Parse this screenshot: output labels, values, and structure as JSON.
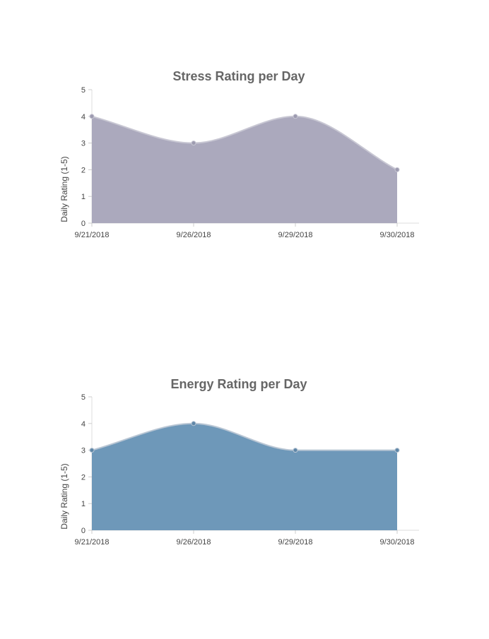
{
  "chart_data": [
    {
      "type": "area",
      "title": "Stress Rating per Day",
      "xlabel": "",
      "ylabel": "Daily Rating (1-5)",
      "categories": [
        "9/21/2018",
        "9/26/2018",
        "9/29/2018",
        "9/30/2018"
      ],
      "values": [
        4,
        3,
        4,
        2
      ],
      "ylim": [
        0,
        5
      ],
      "yticks": [
        "0",
        "1",
        "2",
        "3",
        "4",
        "5"
      ],
      "grid": false,
      "fill_color": "#aba9bd",
      "line_color": "#c8c7d3",
      "point_color": "#9d9bb0"
    },
    {
      "type": "area",
      "title": "Energy Rating per Day",
      "xlabel": "",
      "ylabel": "Daily Rating (1-5)",
      "categories": [
        "9/21/2018",
        "9/26/2018",
        "9/29/2018",
        "9/30/2018"
      ],
      "values": [
        3,
        4,
        3,
        3
      ],
      "ylim": [
        0,
        5
      ],
      "yticks": [
        "0",
        "1",
        "2",
        "3",
        "4",
        "5"
      ],
      "grid": false,
      "fill_color": "#6e98b9",
      "line_color": "#b9c6d4",
      "point_color": "#5f87a8"
    }
  ]
}
